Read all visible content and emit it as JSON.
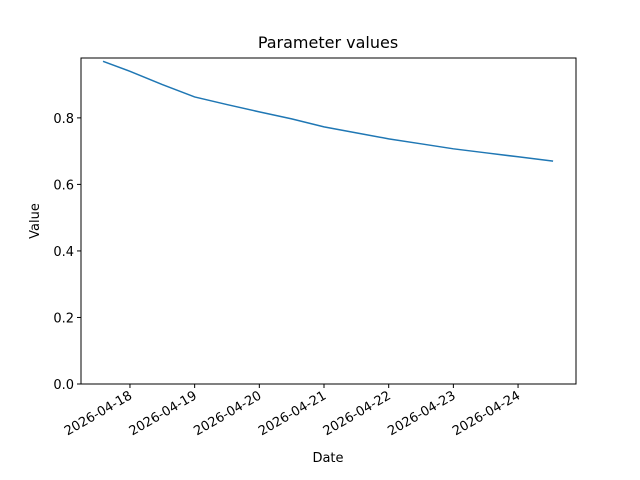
{
  "chart_data": {
    "type": "line",
    "title": "Parameter values",
    "x_label": "Date",
    "y_label": "Value",
    "x": [
      "2026-04-17T14:00",
      "2026-04-18T00:00",
      "2026-04-18T12:00",
      "2026-04-19T00:00",
      "2026-04-19T12:00",
      "2026-04-20T00:00",
      "2026-04-20T12:00",
      "2026-04-21T00:00",
      "2026-04-21T12:00",
      "2026-04-22T00:00",
      "2026-04-22T12:00",
      "2026-04-23T00:00",
      "2026-04-23T12:00",
      "2026-04-24T00:00",
      "2026-04-24T13:00"
    ],
    "series": [
      {
        "name": "Value",
        "color": "#1f77b4",
        "values": [
          0.97,
          0.94,
          0.9,
          0.863,
          0.84,
          0.818,
          0.797,
          0.773,
          0.755,
          0.737,
          0.722,
          0.707,
          0.695,
          0.683,
          0.67
        ]
      }
    ],
    "xlim": [
      "2026-04-17T05:50",
      "2026-04-24T21:30"
    ],
    "xticks": [
      "2026-04-18",
      "2026-04-19",
      "2026-04-20",
      "2026-04-21",
      "2026-04-22",
      "2026-04-23",
      "2026-04-24"
    ],
    "ylim": [
      0,
      0.98
    ],
    "yticks": [
      {
        "value": 0,
        "label": "0.0"
      },
      0.2,
      0.4,
      0.6,
      0.8
    ]
  }
}
